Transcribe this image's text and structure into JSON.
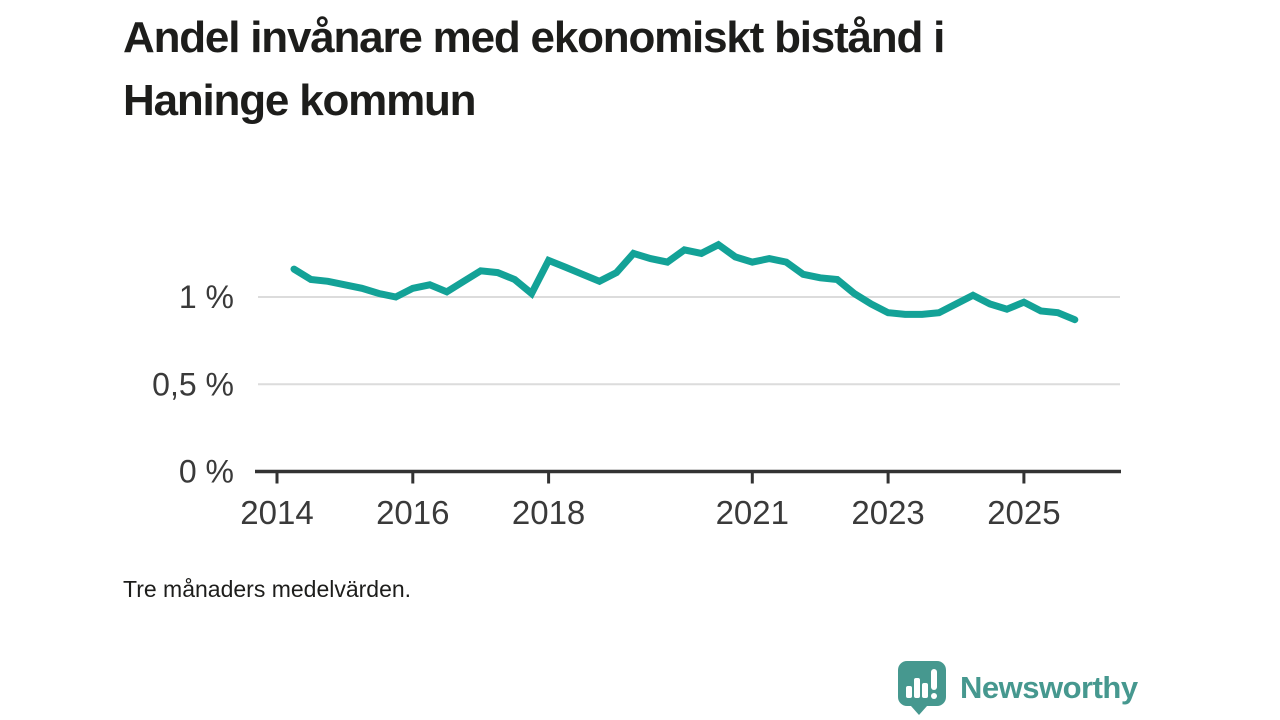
{
  "header": {
    "title": "Andel invånare med ekonomiskt bistånd i Haninge kommun"
  },
  "footnote": "Tre månaders medelvärden.",
  "logo": {
    "label": "Newsworthy",
    "icon": "newsworthy-speech-bubble-bar-chart-icon",
    "color": "#46988f"
  },
  "colors": {
    "line": "#13a297",
    "grid": "#dcdcdc",
    "axis": "#333333",
    "axis_label": "#3a3a3a",
    "background": "#ffffff"
  },
  "chart_data": {
    "type": "line",
    "title": "Andel invånare med ekonomiskt bistånd i Haninge kommun",
    "subtitle": "Tre månaders medelvärden.",
    "xlabel": "",
    "ylabel": "",
    "unit": "%",
    "grid": "horizontal",
    "legend_position": "none",
    "xlim": [
      2013.7,
      2026.5
    ],
    "ylim": [
      0,
      1.4
    ],
    "x_ticks": [
      2014,
      2016,
      2018,
      2021,
      2023,
      2025
    ],
    "y_ticks": [
      {
        "value": 0,
        "label": "0 %"
      },
      {
        "value": 0.5,
        "label": "0,5 %"
      },
      {
        "value": 1,
        "label": "1 %"
      }
    ],
    "series": [
      {
        "name": "Andel invånare med ekonomiskt bistånd",
        "color": "#13a297",
        "x_start": 2014.25,
        "x_step": 0.25,
        "x_unit": "year (quarterly)",
        "values": [
          1.16,
          1.1,
          1.09,
          1.07,
          1.05,
          1.02,
          1.0,
          1.05,
          1.07,
          1.03,
          1.09,
          1.15,
          1.14,
          1.1,
          1.02,
          1.21,
          1.17,
          1.13,
          1.09,
          1.14,
          1.25,
          1.22,
          1.2,
          1.27,
          1.25,
          1.3,
          1.23,
          1.2,
          1.22,
          1.2,
          1.13,
          1.11,
          1.1,
          1.02,
          0.96,
          0.91,
          0.9,
          0.9,
          0.91,
          0.96,
          1.01,
          0.96,
          0.93,
          0.97,
          0.92,
          0.91,
          0.87
        ]
      }
    ]
  }
}
